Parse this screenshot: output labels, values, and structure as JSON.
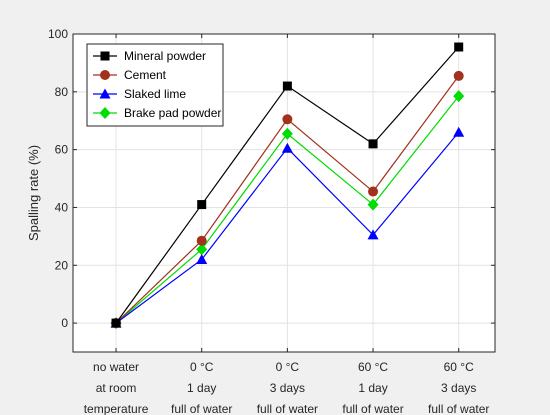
{
  "chart_data": {
    "type": "line",
    "categories": [
      [
        "no water",
        "at room",
        "temperature"
      ],
      [
        "0 °C",
        "1 day",
        "full of water"
      ],
      [
        "0 °C",
        "3 days",
        "full of water"
      ],
      [
        "60 °C",
        "1 day",
        "full of water"
      ],
      [
        "60 °C",
        "3 days",
        "full of water"
      ]
    ],
    "ylabel": "Spalling rate (%)",
    "xlabel": "",
    "ylim": [
      -10,
      100
    ],
    "yticks": [
      0,
      20,
      40,
      60,
      80,
      100
    ],
    "grid": true,
    "legend_position": "top-left",
    "series": [
      {
        "name": "Mineral powder",
        "color": "#000000",
        "marker": "square",
        "values": [
          0,
          41,
          82,
          62,
          95.5
        ]
      },
      {
        "name": "Cement",
        "color": "#a0321e",
        "marker": "circle",
        "values": [
          0,
          28.5,
          70.5,
          45.5,
          85.5
        ]
      },
      {
        "name": "Slaked lime",
        "color": "#0000ff",
        "marker": "triangle",
        "values": [
          0,
          22,
          60.5,
          30.5,
          66
        ]
      },
      {
        "name": "Brake pad powder",
        "color": "#00dd00",
        "marker": "diamond",
        "values": [
          0,
          25.5,
          65.5,
          41,
          78.5
        ]
      }
    ]
  }
}
